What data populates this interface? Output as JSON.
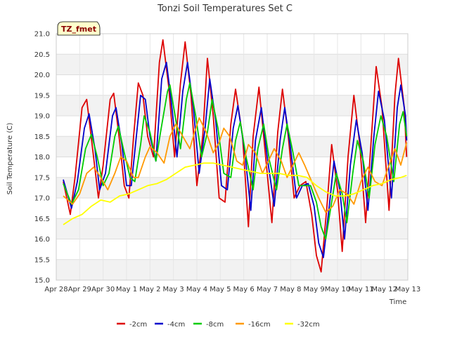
{
  "chart_data": {
    "type": "line",
    "title": "Tonzi Soil Temperatures Set C",
    "xlabel": "Time",
    "ylabel": "Soil Temperature (C)",
    "ylim": [
      15.0,
      21.0
    ],
    "xlim": [
      0,
      15
    ],
    "yticks": [
      15.0,
      15.5,
      16.0,
      16.5,
      17.0,
      17.5,
      18.0,
      18.5,
      19.0,
      19.5,
      20.0,
      20.5,
      21.0
    ],
    "ytick_labels": [
      "15.0",
      "15.5",
      "16.0",
      "16.5",
      "17.0",
      "17.5",
      "18.0",
      "18.5",
      "19.0",
      "19.5",
      "20.0",
      "20.5",
      "21.0"
    ],
    "xticks": [
      0,
      1,
      2,
      3,
      4,
      5,
      6,
      7,
      8,
      9,
      10,
      11,
      12,
      13,
      14,
      15
    ],
    "xtick_labels": [
      "Apr 28",
      "Apr 29",
      "Apr 30",
      "May 1",
      "May 2",
      "May 3",
      "May 4",
      "May 5",
      "May 6",
      "May 7",
      "May 8",
      "May 9",
      "May 10",
      "May 11",
      "May 12",
      "May 13"
    ],
    "grid": true,
    "legend_position": "bottom-center",
    "annotation": "TZ_fmet",
    "x_note": "x values are days after Apr 28 00:00",
    "series": [
      {
        "name": "-2cm",
        "color": "#dd0000",
        "points": [
          [
            0.3,
            17.4
          ],
          [
            0.6,
            16.6
          ],
          [
            0.8,
            17.5
          ],
          [
            1.1,
            19.2
          ],
          [
            1.3,
            19.4
          ],
          [
            1.55,
            18.2
          ],
          [
            1.8,
            17.0
          ],
          [
            2.0,
            17.8
          ],
          [
            2.3,
            19.4
          ],
          [
            2.45,
            19.55
          ],
          [
            2.7,
            18.4
          ],
          [
            2.9,
            17.3
          ],
          [
            3.1,
            17.0
          ],
          [
            3.3,
            18.5
          ],
          [
            3.5,
            19.8
          ],
          [
            3.7,
            19.5
          ],
          [
            3.9,
            18.5
          ],
          [
            4.15,
            18.0
          ],
          [
            4.4,
            20.3
          ],
          [
            4.55,
            20.85
          ],
          [
            4.8,
            19.7
          ],
          [
            5.05,
            18.0
          ],
          [
            5.3,
            19.8
          ],
          [
            5.5,
            20.8
          ],
          [
            5.75,
            19.5
          ],
          [
            6.0,
            17.3
          ],
          [
            6.25,
            18.5
          ],
          [
            6.45,
            20.4
          ],
          [
            6.7,
            19.0
          ],
          [
            6.95,
            17.0
          ],
          [
            7.2,
            16.9
          ],
          [
            7.45,
            18.8
          ],
          [
            7.65,
            19.65
          ],
          [
            7.95,
            18.5
          ],
          [
            8.2,
            16.3
          ],
          [
            8.4,
            18.5
          ],
          [
            8.65,
            19.7
          ],
          [
            8.9,
            18.2
          ],
          [
            9.2,
            16.4
          ],
          [
            9.45,
            18.6
          ],
          [
            9.65,
            19.65
          ],
          [
            9.9,
            18.5
          ],
          [
            10.15,
            17.0
          ],
          [
            10.4,
            17.3
          ],
          [
            10.65,
            17.4
          ],
          [
            10.9,
            16.6
          ],
          [
            11.1,
            15.6
          ],
          [
            11.3,
            15.2
          ],
          [
            11.55,
            16.8
          ],
          [
            11.75,
            18.3
          ],
          [
            12.0,
            17.2
          ],
          [
            12.2,
            15.7
          ],
          [
            12.45,
            18.0
          ],
          [
            12.7,
            19.5
          ],
          [
            12.95,
            18.3
          ],
          [
            13.2,
            16.4
          ],
          [
            13.45,
            18.5
          ],
          [
            13.65,
            20.2
          ],
          [
            13.9,
            19.2
          ],
          [
            14.2,
            16.7
          ],
          [
            14.45,
            19.5
          ],
          [
            14.6,
            20.4
          ],
          [
            14.85,
            19.2
          ],
          [
            14.95,
            18.0
          ]
        ]
      },
      {
        "name": "-4cm",
        "color": "#0000cc",
        "points": [
          [
            0.3,
            17.45
          ],
          [
            0.65,
            16.75
          ],
          [
            0.9,
            17.4
          ],
          [
            1.2,
            18.7
          ],
          [
            1.4,
            19.05
          ],
          [
            1.65,
            18.2
          ],
          [
            1.85,
            17.2
          ],
          [
            2.1,
            17.6
          ],
          [
            2.4,
            19.0
          ],
          [
            2.55,
            19.2
          ],
          [
            2.8,
            18.3
          ],
          [
            3.0,
            17.3
          ],
          [
            3.2,
            17.3
          ],
          [
            3.4,
            18.4
          ],
          [
            3.6,
            19.5
          ],
          [
            3.8,
            19.4
          ],
          [
            4.0,
            18.5
          ],
          [
            4.25,
            17.9
          ],
          [
            4.5,
            19.9
          ],
          [
            4.7,
            20.3
          ],
          [
            4.9,
            19.4
          ],
          [
            5.15,
            18.0
          ],
          [
            5.4,
            19.6
          ],
          [
            5.6,
            20.3
          ],
          [
            5.85,
            19.2
          ],
          [
            6.1,
            17.6
          ],
          [
            6.35,
            18.7
          ],
          [
            6.55,
            19.9
          ],
          [
            6.8,
            18.9
          ],
          [
            7.05,
            17.3
          ],
          [
            7.3,
            17.2
          ],
          [
            7.55,
            18.7
          ],
          [
            7.75,
            19.25
          ],
          [
            8.05,
            18.1
          ],
          [
            8.3,
            16.7
          ],
          [
            8.5,
            18.4
          ],
          [
            8.75,
            19.2
          ],
          [
            9.0,
            18.0
          ],
          [
            9.3,
            16.8
          ],
          [
            9.55,
            18.4
          ],
          [
            9.75,
            19.2
          ],
          [
            10.0,
            18.2
          ],
          [
            10.25,
            17.0
          ],
          [
            10.5,
            17.3
          ],
          [
            10.75,
            17.35
          ],
          [
            11.0,
            16.8
          ],
          [
            11.2,
            15.9
          ],
          [
            11.4,
            15.55
          ],
          [
            11.65,
            16.8
          ],
          [
            11.85,
            17.9
          ],
          [
            12.1,
            17.2
          ],
          [
            12.3,
            16.0
          ],
          [
            12.55,
            17.8
          ],
          [
            12.8,
            18.9
          ],
          [
            13.05,
            18.1
          ],
          [
            13.3,
            16.7
          ],
          [
            13.55,
            18.5
          ],
          [
            13.75,
            19.6
          ],
          [
            14.0,
            18.9
          ],
          [
            14.3,
            17.0
          ],
          [
            14.55,
            19.2
          ],
          [
            14.7,
            19.75
          ],
          [
            14.9,
            19.0
          ],
          [
            14.95,
            18.4
          ]
        ]
      },
      {
        "name": "-8cm",
        "color": "#00cc00",
        "points": [
          [
            0.3,
            17.35
          ],
          [
            0.65,
            16.85
          ],
          [
            0.95,
            17.2
          ],
          [
            1.25,
            18.2
          ],
          [
            1.5,
            18.55
          ],
          [
            1.75,
            18.0
          ],
          [
            2.0,
            17.3
          ],
          [
            2.25,
            17.6
          ],
          [
            2.5,
            18.5
          ],
          [
            2.65,
            18.75
          ],
          [
            2.9,
            18.1
          ],
          [
            3.15,
            17.5
          ],
          [
            3.35,
            17.4
          ],
          [
            3.6,
            18.3
          ],
          [
            3.75,
            19.0
          ],
          [
            4.0,
            18.6
          ],
          [
            4.25,
            17.9
          ],
          [
            4.45,
            18.6
          ],
          [
            4.75,
            19.6
          ],
          [
            4.85,
            19.75
          ],
          [
            5.1,
            18.9
          ],
          [
            5.3,
            18.2
          ],
          [
            5.55,
            19.4
          ],
          [
            5.7,
            19.8
          ],
          [
            5.95,
            19.0
          ],
          [
            6.2,
            18.0
          ],
          [
            6.45,
            18.6
          ],
          [
            6.65,
            19.4
          ],
          [
            6.9,
            18.7
          ],
          [
            7.15,
            17.6
          ],
          [
            7.45,
            17.5
          ],
          [
            7.65,
            18.4
          ],
          [
            7.85,
            18.85
          ],
          [
            8.1,
            18.0
          ],
          [
            8.4,
            17.2
          ],
          [
            8.6,
            18.2
          ],
          [
            8.85,
            18.8
          ],
          [
            9.1,
            17.9
          ],
          [
            9.4,
            17.2
          ],
          [
            9.65,
            18.2
          ],
          [
            9.85,
            18.8
          ],
          [
            10.1,
            18.1
          ],
          [
            10.35,
            17.3
          ],
          [
            10.6,
            17.3
          ],
          [
            10.85,
            17.3
          ],
          [
            11.1,
            16.9
          ],
          [
            11.3,
            16.3
          ],
          [
            11.5,
            16.0
          ],
          [
            11.75,
            16.9
          ],
          [
            11.95,
            17.6
          ],
          [
            12.2,
            17.1
          ],
          [
            12.4,
            16.4
          ],
          [
            12.65,
            17.6
          ],
          [
            12.85,
            18.4
          ],
          [
            13.1,
            17.9
          ],
          [
            13.35,
            17.0
          ],
          [
            13.6,
            18.3
          ],
          [
            13.85,
            19.0
          ],
          [
            14.1,
            18.5
          ],
          [
            14.4,
            17.4
          ],
          [
            14.65,
            18.8
          ],
          [
            14.8,
            19.1
          ],
          [
            14.95,
            18.5
          ]
        ]
      },
      {
        "name": "-16cm",
        "color": "#ff9900",
        "points": [
          [
            0.3,
            17.05
          ],
          [
            0.7,
            16.85
          ],
          [
            1.0,
            17.1
          ],
          [
            1.3,
            17.6
          ],
          [
            1.6,
            17.75
          ],
          [
            1.9,
            17.5
          ],
          [
            2.2,
            17.2
          ],
          [
            2.5,
            17.6
          ],
          [
            2.75,
            18.0
          ],
          [
            3.0,
            17.9
          ],
          [
            3.3,
            17.5
          ],
          [
            3.5,
            17.5
          ],
          [
            3.8,
            18.0
          ],
          [
            4.0,
            18.25
          ],
          [
            4.3,
            18.1
          ],
          [
            4.6,
            17.85
          ],
          [
            4.85,
            18.5
          ],
          [
            5.1,
            18.8
          ],
          [
            5.4,
            18.5
          ],
          [
            5.7,
            18.2
          ],
          [
            5.9,
            18.6
          ],
          [
            6.1,
            18.95
          ],
          [
            6.4,
            18.6
          ],
          [
            6.7,
            18.1
          ],
          [
            6.95,
            18.35
          ],
          [
            7.15,
            18.7
          ],
          [
            7.4,
            18.5
          ],
          [
            7.7,
            17.9
          ],
          [
            7.95,
            17.8
          ],
          [
            8.2,
            18.3
          ],
          [
            8.5,
            18.1
          ],
          [
            8.8,
            17.6
          ],
          [
            9.05,
            17.9
          ],
          [
            9.3,
            18.2
          ],
          [
            9.6,
            17.9
          ],
          [
            9.85,
            17.5
          ],
          [
            10.1,
            17.8
          ],
          [
            10.35,
            18.1
          ],
          [
            10.6,
            17.8
          ],
          [
            10.9,
            17.4
          ],
          [
            11.2,
            17.0
          ],
          [
            11.5,
            16.65
          ],
          [
            11.8,
            16.8
          ],
          [
            12.1,
            17.2
          ],
          [
            12.4,
            17.1
          ],
          [
            12.7,
            16.85
          ],
          [
            13.0,
            17.4
          ],
          [
            13.3,
            17.75
          ],
          [
            13.6,
            17.4
          ],
          [
            13.9,
            17.3
          ],
          [
            14.2,
            17.8
          ],
          [
            14.45,
            18.2
          ],
          [
            14.7,
            17.8
          ],
          [
            14.95,
            18.35
          ]
        ]
      },
      {
        "name": "-32cm",
        "color": "#ffff00",
        "points": [
          [
            0.3,
            16.35
          ],
          [
            0.7,
            16.5
          ],
          [
            1.1,
            16.6
          ],
          [
            1.5,
            16.8
          ],
          [
            1.9,
            16.95
          ],
          [
            2.3,
            16.9
          ],
          [
            2.7,
            17.05
          ],
          [
            3.1,
            17.1
          ],
          [
            3.5,
            17.2
          ],
          [
            3.9,
            17.3
          ],
          [
            4.3,
            17.35
          ],
          [
            4.7,
            17.45
          ],
          [
            5.1,
            17.6
          ],
          [
            5.5,
            17.75
          ],
          [
            5.9,
            17.8
          ],
          [
            6.3,
            17.85
          ],
          [
            6.7,
            17.85
          ],
          [
            7.1,
            17.8
          ],
          [
            7.5,
            17.75
          ],
          [
            7.9,
            17.7
          ],
          [
            8.3,
            17.65
          ],
          [
            8.7,
            17.6
          ],
          [
            9.1,
            17.6
          ],
          [
            9.5,
            17.6
          ],
          [
            9.9,
            17.55
          ],
          [
            10.3,
            17.55
          ],
          [
            10.7,
            17.5
          ],
          [
            11.1,
            17.3
          ],
          [
            11.5,
            17.15
          ],
          [
            11.9,
            17.05
          ],
          [
            12.3,
            17.05
          ],
          [
            12.7,
            17.1
          ],
          [
            13.1,
            17.2
          ],
          [
            13.5,
            17.3
          ],
          [
            13.9,
            17.35
          ],
          [
            14.3,
            17.45
          ],
          [
            14.7,
            17.5
          ],
          [
            14.95,
            17.55
          ]
        ]
      }
    ]
  }
}
